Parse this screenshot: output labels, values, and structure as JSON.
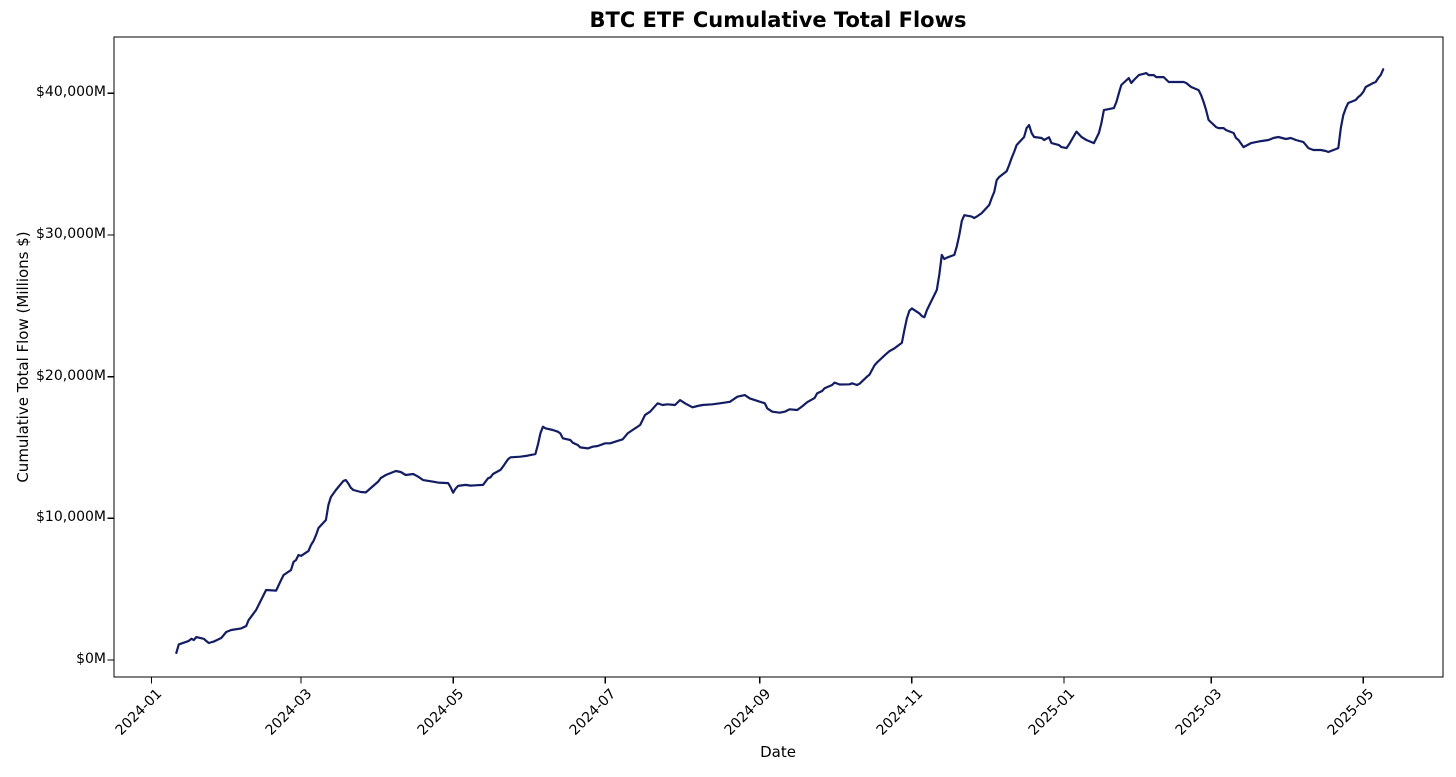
{
  "chart_data": {
    "type": "line",
    "title": "BTC ETF Cumulative Total Flows",
    "xlabel": "Date",
    "ylabel": "Cumulative Total Flow (Millions $)",
    "grid": false,
    "legend": "none",
    "line_color": "#131d63",
    "line_width": 2.2,
    "background_color": "#ffffff",
    "xlim": [
      "2023-12-17",
      "2025-06-02"
    ],
    "ylim": [
      -1200,
      43980
    ],
    "x_ticks": [
      {
        "label": "2024-01",
        "date": "2024-01-01"
      },
      {
        "label": "2024-03",
        "date": "2024-03-01"
      },
      {
        "label": "2024-05",
        "date": "2024-05-01"
      },
      {
        "label": "2024-07",
        "date": "2024-07-01"
      },
      {
        "label": "2024-09",
        "date": "2024-09-01"
      },
      {
        "label": "2024-11",
        "date": "2024-11-01"
      },
      {
        "label": "2025-01",
        "date": "2025-01-01"
      },
      {
        "label": "2025-03",
        "date": "2025-03-01"
      },
      {
        "label": "2025-05",
        "date": "2025-05-01"
      }
    ],
    "y_ticks": [
      {
        "label": "$0M",
        "value": 0
      },
      {
        "label": "$10,000M",
        "value": 10000
      },
      {
        "label": "$20,000M",
        "value": 20000
      },
      {
        "label": "$30,000M",
        "value": 30000
      },
      {
        "label": "$40,000M",
        "value": 40000
      }
    ],
    "series": [
      {
        "name": "Cumulative Total Flow (Millions $)",
        "points": [
          [
            "2024-01-11",
            500
          ],
          [
            "2024-01-12",
            1100
          ],
          [
            "2024-01-16",
            1350
          ],
          [
            "2024-01-17",
            1500
          ],
          [
            "2024-01-18",
            1410
          ],
          [
            "2024-01-19",
            1620
          ],
          [
            "2024-01-22",
            1500
          ],
          [
            "2024-01-23",
            1340
          ],
          [
            "2024-01-24",
            1200
          ],
          [
            "2024-01-26",
            1300
          ],
          [
            "2024-01-29",
            1550
          ],
          [
            "2024-01-30",
            1760
          ],
          [
            "2024-01-31",
            1980
          ],
          [
            "2024-02-02",
            2120
          ],
          [
            "2024-02-06",
            2230
          ],
          [
            "2024-02-08",
            2400
          ],
          [
            "2024-02-09",
            2820
          ],
          [
            "2024-02-12",
            3530
          ],
          [
            "2024-02-13",
            3880
          ],
          [
            "2024-02-15",
            4590
          ],
          [
            "2024-02-16",
            4940
          ],
          [
            "2024-02-20",
            4900
          ],
          [
            "2024-02-22",
            5650
          ],
          [
            "2024-02-23",
            6000
          ],
          [
            "2024-02-26",
            6350
          ],
          [
            "2024-02-27",
            6920
          ],
          [
            "2024-02-28",
            7060
          ],
          [
            "2024-02-29",
            7410
          ],
          [
            "2024-03-01",
            7350
          ],
          [
            "2024-03-04",
            7700
          ],
          [
            "2024-03-05",
            8120
          ],
          [
            "2024-03-06",
            8400
          ],
          [
            "2024-03-07",
            8820
          ],
          [
            "2024-03-08",
            9320
          ],
          [
            "2024-03-11",
            9880
          ],
          [
            "2024-03-12",
            10940
          ],
          [
            "2024-03-13",
            11510
          ],
          [
            "2024-03-15",
            12000
          ],
          [
            "2024-03-18",
            12640
          ],
          [
            "2024-03-19",
            12700
          ],
          [
            "2024-03-20",
            12450
          ],
          [
            "2024-03-21",
            12150
          ],
          [
            "2024-03-22",
            12000
          ],
          [
            "2024-03-25",
            11860
          ],
          [
            "2024-03-27",
            11830
          ],
          [
            "2024-03-29",
            12140
          ],
          [
            "2024-04-01",
            12600
          ],
          [
            "2024-04-02",
            12850
          ],
          [
            "2024-04-04",
            13060
          ],
          [
            "2024-04-08",
            13340
          ],
          [
            "2024-04-10",
            13270
          ],
          [
            "2024-04-12",
            13060
          ],
          [
            "2024-04-15",
            13130
          ],
          [
            "2024-04-17",
            12940
          ],
          [
            "2024-04-19",
            12700
          ],
          [
            "2024-04-23",
            12590
          ],
          [
            "2024-04-25",
            12520
          ],
          [
            "2024-04-29",
            12490
          ],
          [
            "2024-04-30",
            12200
          ],
          [
            "2024-05-01",
            11810
          ],
          [
            "2024-05-02",
            12100
          ],
          [
            "2024-05-03",
            12290
          ],
          [
            "2024-05-06",
            12360
          ],
          [
            "2024-05-08",
            12310
          ],
          [
            "2024-05-10",
            12330
          ],
          [
            "2024-05-13",
            12360
          ],
          [
            "2024-05-15",
            12830
          ],
          [
            "2024-05-16",
            12900
          ],
          [
            "2024-05-17",
            13130
          ],
          [
            "2024-05-20",
            13420
          ],
          [
            "2024-05-21",
            13650
          ],
          [
            "2024-05-23",
            14170
          ],
          [
            "2024-05-24",
            14310
          ],
          [
            "2024-05-28",
            14350
          ],
          [
            "2024-05-31",
            14430
          ],
          [
            "2024-06-03",
            14540
          ],
          [
            "2024-06-04",
            15200
          ],
          [
            "2024-06-05",
            16000
          ],
          [
            "2024-06-06",
            16470
          ],
          [
            "2024-06-07",
            16360
          ],
          [
            "2024-06-10",
            16240
          ],
          [
            "2024-06-12",
            16120
          ],
          [
            "2024-06-13",
            16000
          ],
          [
            "2024-06-14",
            15650
          ],
          [
            "2024-06-17",
            15530
          ],
          [
            "2024-06-18",
            15340
          ],
          [
            "2024-06-20",
            15180
          ],
          [
            "2024-06-21",
            15010
          ],
          [
            "2024-06-24",
            14940
          ],
          [
            "2024-06-26",
            15060
          ],
          [
            "2024-06-28",
            15110
          ],
          [
            "2024-07-01",
            15300
          ],
          [
            "2024-07-03",
            15300
          ],
          [
            "2024-07-05",
            15410
          ],
          [
            "2024-07-08",
            15580
          ],
          [
            "2024-07-10",
            16000
          ],
          [
            "2024-07-12",
            16240
          ],
          [
            "2024-07-15",
            16590
          ],
          [
            "2024-07-16",
            16940
          ],
          [
            "2024-07-17",
            17300
          ],
          [
            "2024-07-19",
            17530
          ],
          [
            "2024-07-22",
            18120
          ],
          [
            "2024-07-24",
            18000
          ],
          [
            "2024-07-26",
            18050
          ],
          [
            "2024-07-29",
            18000
          ],
          [
            "2024-07-31",
            18350
          ],
          [
            "2024-08-02",
            18120
          ],
          [
            "2024-08-05",
            17840
          ],
          [
            "2024-08-07",
            17930
          ],
          [
            "2024-08-09",
            18000
          ],
          [
            "2024-08-13",
            18050
          ],
          [
            "2024-08-16",
            18120
          ],
          [
            "2024-08-20",
            18230
          ],
          [
            "2024-08-23",
            18590
          ],
          [
            "2024-08-26",
            18700
          ],
          [
            "2024-08-28",
            18470
          ],
          [
            "2024-08-30",
            18350
          ],
          [
            "2024-09-03",
            18120
          ],
          [
            "2024-09-04",
            17760
          ],
          [
            "2024-09-06",
            17530
          ],
          [
            "2024-09-09",
            17460
          ],
          [
            "2024-09-11",
            17530
          ],
          [
            "2024-09-13",
            17700
          ],
          [
            "2024-09-16",
            17650
          ],
          [
            "2024-09-18",
            17900
          ],
          [
            "2024-09-20",
            18200
          ],
          [
            "2024-09-23",
            18500
          ],
          [
            "2024-09-24",
            18820
          ],
          [
            "2024-09-26",
            18990
          ],
          [
            "2024-09-27",
            19180
          ],
          [
            "2024-09-30",
            19410
          ],
          [
            "2024-10-01",
            19580
          ],
          [
            "2024-10-03",
            19450
          ],
          [
            "2024-10-07",
            19460
          ],
          [
            "2024-10-08",
            19530
          ],
          [
            "2024-10-10",
            19410
          ],
          [
            "2024-10-11",
            19500
          ],
          [
            "2024-10-14",
            20000
          ],
          [
            "2024-10-15",
            20150
          ],
          [
            "2024-10-16",
            20470
          ],
          [
            "2024-10-17",
            20800
          ],
          [
            "2024-10-18",
            21000
          ],
          [
            "2024-10-21",
            21500
          ],
          [
            "2024-10-23",
            21810
          ],
          [
            "2024-10-25",
            22000
          ],
          [
            "2024-10-28",
            22400
          ],
          [
            "2024-10-29",
            23300
          ],
          [
            "2024-10-30",
            24120
          ],
          [
            "2024-10-31",
            24660
          ],
          [
            "2024-11-01",
            24820
          ],
          [
            "2024-11-04",
            24470
          ],
          [
            "2024-11-05",
            24280
          ],
          [
            "2024-11-06",
            24200
          ],
          [
            "2024-11-07",
            24700
          ],
          [
            "2024-11-08",
            25060
          ],
          [
            "2024-11-11",
            26120
          ],
          [
            "2024-11-12",
            27200
          ],
          [
            "2024-11-13",
            28600
          ],
          [
            "2024-11-14",
            28300
          ],
          [
            "2024-11-15",
            28400
          ],
          [
            "2024-11-18",
            28600
          ],
          [
            "2024-11-19",
            29200
          ],
          [
            "2024-11-20",
            30000
          ],
          [
            "2024-11-21",
            31000
          ],
          [
            "2024-11-22",
            31400
          ],
          [
            "2024-11-25",
            31300
          ],
          [
            "2024-11-26",
            31200
          ],
          [
            "2024-11-27",
            31300
          ],
          [
            "2024-11-29",
            31550
          ],
          [
            "2024-12-02",
            32120
          ],
          [
            "2024-12-03",
            32610
          ],
          [
            "2024-12-04",
            33040
          ],
          [
            "2024-12-05",
            33880
          ],
          [
            "2024-12-06",
            34100
          ],
          [
            "2024-12-09",
            34500
          ],
          [
            "2024-12-10",
            34940
          ],
          [
            "2024-12-11",
            35430
          ],
          [
            "2024-12-12",
            35860
          ],
          [
            "2024-12-13",
            36350
          ],
          [
            "2024-12-16",
            36920
          ],
          [
            "2024-12-17",
            37550
          ],
          [
            "2024-12-18",
            37760
          ],
          [
            "2024-12-19",
            37200
          ],
          [
            "2024-12-20",
            36920
          ],
          [
            "2024-12-23",
            36850
          ],
          [
            "2024-12-24",
            36710
          ],
          [
            "2024-12-26",
            36900
          ],
          [
            "2024-12-27",
            36490
          ],
          [
            "2024-12-30",
            36350
          ],
          [
            "2024-12-31",
            36210
          ],
          [
            "2025-01-02",
            36140
          ],
          [
            "2025-01-03",
            36400
          ],
          [
            "2025-01-06",
            37300
          ],
          [
            "2025-01-08",
            36920
          ],
          [
            "2025-01-10",
            36710
          ],
          [
            "2025-01-13",
            36490
          ],
          [
            "2025-01-15",
            37200
          ],
          [
            "2025-01-16",
            37900
          ],
          [
            "2025-01-17",
            38820
          ],
          [
            "2025-01-21",
            38960
          ],
          [
            "2025-01-22",
            39390
          ],
          [
            "2025-01-23",
            40020
          ],
          [
            "2025-01-24",
            40590
          ],
          [
            "2025-01-27",
            41080
          ],
          [
            "2025-01-28",
            40730
          ],
          [
            "2025-01-29",
            40940
          ],
          [
            "2025-01-31",
            41290
          ],
          [
            "2025-02-03",
            41430
          ],
          [
            "2025-02-04",
            41290
          ],
          [
            "2025-02-06",
            41290
          ],
          [
            "2025-02-07",
            41150
          ],
          [
            "2025-02-10",
            41150
          ],
          [
            "2025-02-12",
            40800
          ],
          [
            "2025-02-14",
            40800
          ],
          [
            "2025-02-18",
            40800
          ],
          [
            "2025-02-19",
            40730
          ],
          [
            "2025-02-21",
            40450
          ],
          [
            "2025-02-24",
            40230
          ],
          [
            "2025-02-25",
            39880
          ],
          [
            "2025-02-26",
            39390
          ],
          [
            "2025-02-27",
            38820
          ],
          [
            "2025-02-28",
            38120
          ],
          [
            "2025-03-03",
            37620
          ],
          [
            "2025-03-04",
            37550
          ],
          [
            "2025-03-06",
            37550
          ],
          [
            "2025-03-07",
            37410
          ],
          [
            "2025-03-10",
            37200
          ],
          [
            "2025-03-11",
            36850
          ],
          [
            "2025-03-12",
            36710
          ],
          [
            "2025-03-14",
            36210
          ],
          [
            "2025-03-17",
            36490
          ],
          [
            "2025-03-19",
            36560
          ],
          [
            "2025-03-21",
            36630
          ],
          [
            "2025-03-24",
            36710
          ],
          [
            "2025-03-26",
            36850
          ],
          [
            "2025-03-28",
            36920
          ],
          [
            "2025-03-31",
            36780
          ],
          [
            "2025-04-02",
            36850
          ],
          [
            "2025-04-04",
            36710
          ],
          [
            "2025-04-07",
            36560
          ],
          [
            "2025-04-09",
            36140
          ],
          [
            "2025-04-11",
            36000
          ],
          [
            "2025-04-14",
            36000
          ],
          [
            "2025-04-16",
            35930
          ],
          [
            "2025-04-17",
            35860
          ],
          [
            "2025-04-21",
            36140
          ],
          [
            "2025-04-22",
            37550
          ],
          [
            "2025-04-23",
            38470
          ],
          [
            "2025-04-24",
            38960
          ],
          [
            "2025-04-25",
            39320
          ],
          [
            "2025-04-28",
            39530
          ],
          [
            "2025-04-29",
            39740
          ],
          [
            "2025-04-30",
            39880
          ],
          [
            "2025-05-01",
            40090
          ],
          [
            "2025-05-02",
            40450
          ],
          [
            "2025-05-05",
            40730
          ],
          [
            "2025-05-06",
            40800
          ],
          [
            "2025-05-07",
            41080
          ],
          [
            "2025-05-08",
            41290
          ],
          [
            "2025-05-09",
            41700
          ]
        ]
      }
    ]
  }
}
